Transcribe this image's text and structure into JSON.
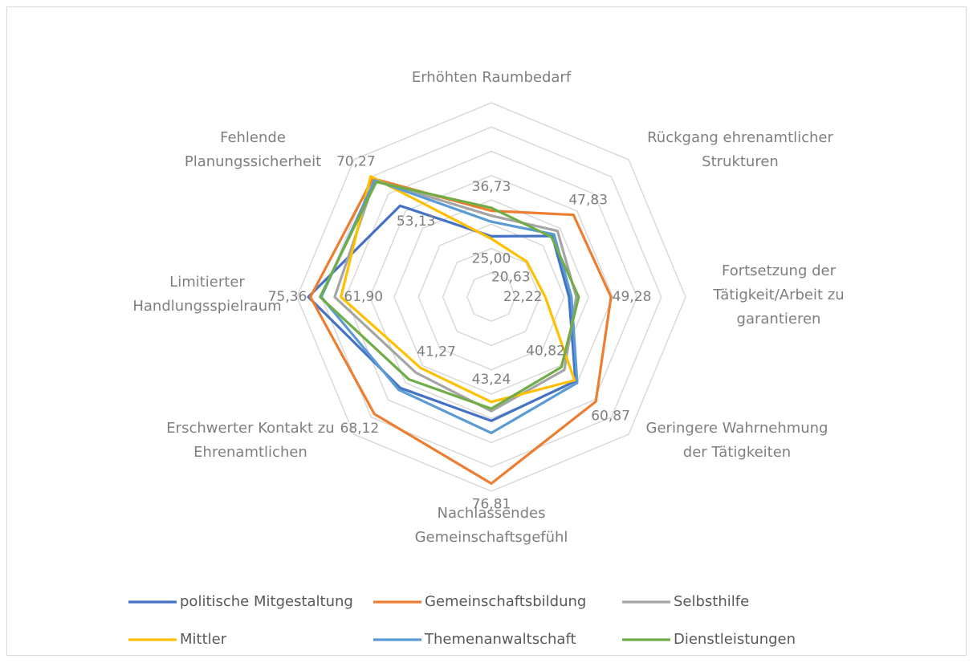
{
  "chart_data": {
    "type": "radar",
    "categories": [
      [
        "Erhöhten Raumbedarf"
      ],
      [
        "Rückgang ehrenamtlicher",
        "Strukturen"
      ],
      [
        "Fortsetzung der",
        "Tätigkeit/Arbeit zu",
        "garantieren"
      ],
      [
        "Geringere Wahrnehmung",
        "der Tätigkeiten"
      ],
      [
        "Nachlassendes",
        "Gemeinschaftsgefühl"
      ],
      [
        "Erschwerter Kontakt zu",
        "Ehrenamtlichen"
      ],
      [
        "Limitierter",
        "Handlungsspielraum"
      ],
      [
        "Fehlende",
        "Planungssicherheit"
      ]
    ],
    "ylim": [
      0,
      80
    ],
    "yticks": [
      0,
      10,
      20,
      30,
      40,
      50,
      60,
      70,
      80
    ],
    "grid": true,
    "series": [
      {
        "name": "politische Mitgestaltung",
        "color": "#4472c4",
        "values": [
          25.0,
          35.5,
          32,
          49,
          51,
          53,
          75.36,
          53.13
        ],
        "value_labels": [
          "25,00",
          null,
          null,
          null,
          null,
          null,
          "75,36",
          "53,13"
        ]
      },
      {
        "name": "Gemeinschaftsbildung",
        "color": "#ed7d31",
        "values": [
          35.5,
          47.83,
          49.28,
          60.87,
          76.81,
          68.12,
          74.5,
          69
        ],
        "value_labels": [
          null,
          "47,83",
          "49,28",
          "60,87",
          "76,81",
          "68,12",
          null,
          null
        ]
      },
      {
        "name": "Selbsthilfe",
        "color": "#a5a5a5",
        "values": [
          33.5,
          38.5,
          35,
          42.5,
          47,
          44,
          64.5,
          68
        ]
      },
      {
        "name": "Mittler",
        "color": "#ffc000",
        "values": [
          24,
          20.63,
          22.22,
          48.5,
          43.24,
          41.27,
          61.9,
          70.27
        ],
        "value_labels": [
          null,
          "20,63",
          "22,22",
          null,
          "43,24",
          "41,27",
          "61,90",
          "70,27"
        ]
      },
      {
        "name": "Themenanwaltschaft",
        "color": "#5b9bd5",
        "values": [
          31,
          36.5,
          33,
          50,
          56,
          54,
          70,
          68
        ]
      },
      {
        "name": "Dienstleistungen",
        "color": "#70ad47",
        "values": [
          36.73,
          35,
          36,
          40.82,
          46,
          48,
          70.5,
          67
        ],
        "value_labels": [
          "36,73",
          null,
          null,
          "40,82",
          null,
          null,
          null,
          null
        ]
      }
    ]
  }
}
